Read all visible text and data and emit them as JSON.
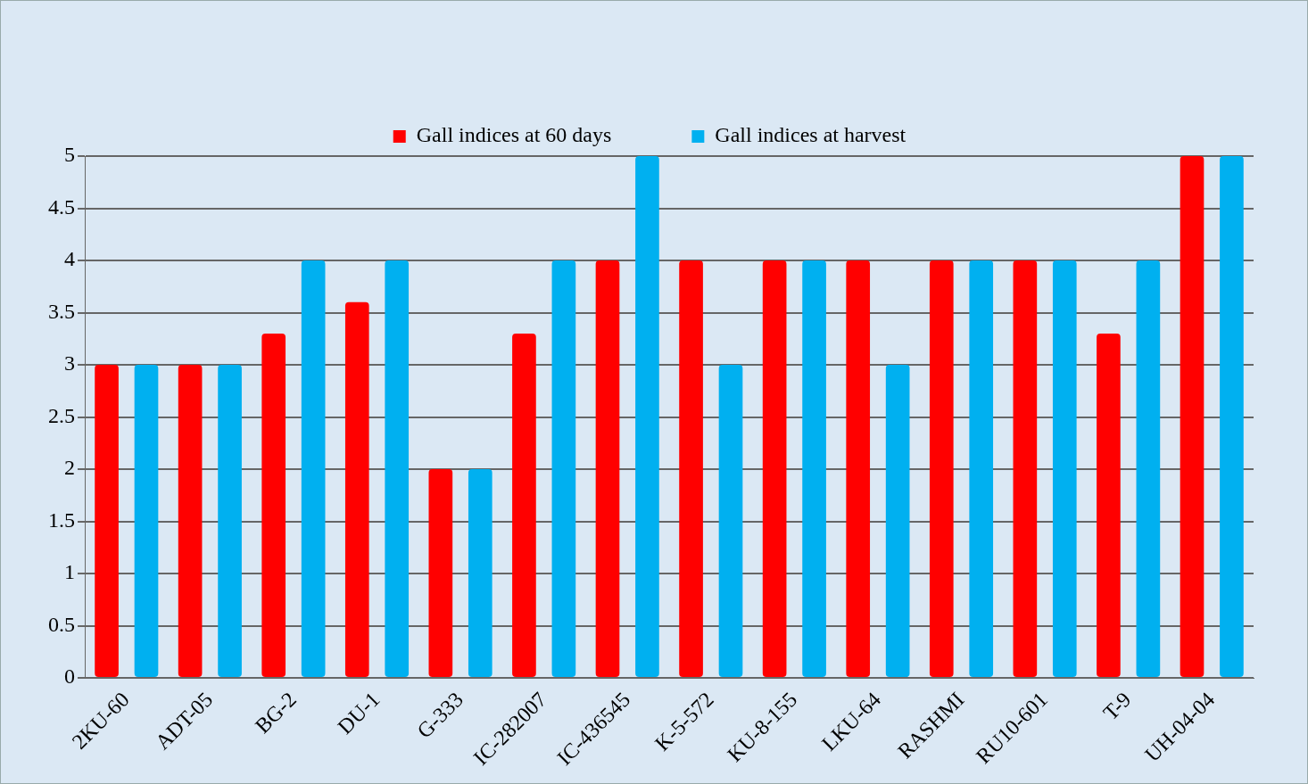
{
  "chart_data": {
    "type": "bar",
    "categories": [
      "2KU-60",
      "ADT-05",
      "BG-2",
      "DU-1",
      "G-333",
      "IC-282007",
      "IC-436545",
      "K-5-572",
      "KU-8-155",
      "LKU-64",
      "RASHMI",
      "RU10-601",
      "T-9",
      "UH-04-04"
    ],
    "series": [
      {
        "name": "Gall indices at 60 days",
        "color": "#ff0000",
        "values": [
          3,
          3,
          3.3,
          3.6,
          2,
          3.3,
          4,
          4,
          4,
          4,
          4,
          4,
          3.3,
          5
        ]
      },
      {
        "name": "Gall indices at harvest",
        "color": "#00b0f0",
        "values": [
          3,
          3,
          4,
          4,
          2,
          4,
          5,
          3,
          4,
          3,
          4,
          4,
          4,
          5
        ]
      }
    ],
    "ylim": [
      0,
      5
    ],
    "yticks": [
      0,
      0.5,
      1,
      1.5,
      2,
      2.5,
      3,
      3.5,
      4,
      4.5,
      5
    ],
    "grid": "y",
    "legend": "top"
  }
}
